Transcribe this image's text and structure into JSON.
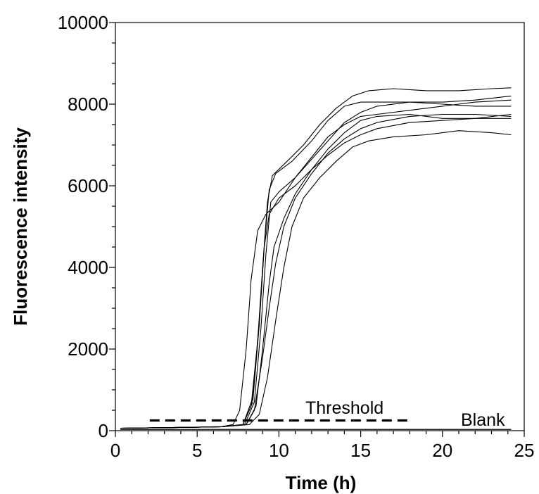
{
  "chart_data": {
    "type": "line",
    "title": "",
    "xlabel": "Time (h)",
    "ylabel": "Fluorescence intensity",
    "xlim": [
      0,
      25
    ],
    "ylim": [
      0,
      10000
    ],
    "x_ticks": [
      0,
      5,
      10,
      15,
      20,
      25
    ],
    "y_ticks": [
      0,
      2000,
      4000,
      6000,
      8000,
      10000
    ],
    "x_tick_labels": [
      "0",
      "5",
      "10",
      "15",
      "20",
      "25"
    ],
    "y_tick_labels": [
      "0",
      "2000",
      "4000",
      "6000",
      "8000",
      "10000"
    ],
    "grid": false,
    "legend": "none",
    "line_color": "#000000",
    "series": [
      {
        "values": [
          [
            0.3,
            60
          ],
          [
            4,
            80
          ],
          [
            6.5,
            100
          ],
          [
            7.2,
            150
          ],
          [
            7.6,
            500
          ],
          [
            8.0,
            2000
          ],
          [
            8.3,
            3700
          ],
          [
            8.7,
            4900
          ],
          [
            9.2,
            5300
          ],
          [
            10,
            5600
          ],
          [
            11,
            6200
          ],
          [
            12,
            6700
          ],
          [
            13,
            7200
          ],
          [
            14,
            7500
          ],
          [
            15,
            7700
          ],
          [
            16,
            7750
          ],
          [
            18,
            7850
          ],
          [
            20,
            7950
          ],
          [
            22,
            8050
          ],
          [
            24.2,
            8100
          ]
        ]
      },
      {
        "values": [
          [
            0.3,
            60
          ],
          [
            4,
            80
          ],
          [
            6.5,
            95
          ],
          [
            7.8,
            150
          ],
          [
            8.3,
            600
          ],
          [
            8.7,
            2200
          ],
          [
            9.0,
            4000
          ],
          [
            9.3,
            5600
          ],
          [
            9.6,
            6250
          ],
          [
            10.5,
            6600
          ],
          [
            11.5,
            7000
          ],
          [
            12.5,
            7500
          ],
          [
            13.5,
            7900
          ],
          [
            14.5,
            8200
          ],
          [
            15.5,
            8330
          ],
          [
            17,
            8380
          ],
          [
            19,
            8330
          ],
          [
            21,
            8330
          ],
          [
            23,
            8380
          ],
          [
            24.2,
            8400
          ]
        ]
      },
      {
        "values": [
          [
            0.3,
            60
          ],
          [
            4,
            80
          ],
          [
            6.5,
            95
          ],
          [
            7.8,
            150
          ],
          [
            8.4,
            700
          ],
          [
            8.8,
            2600
          ],
          [
            9.1,
            4500
          ],
          [
            9.4,
            5900
          ],
          [
            9.8,
            6300
          ],
          [
            10.8,
            6600
          ],
          [
            12,
            7100
          ],
          [
            13,
            7600
          ],
          [
            14,
            7950
          ],
          [
            15,
            8050
          ],
          [
            16,
            8050
          ],
          [
            18,
            8050
          ],
          [
            20,
            8050
          ],
          [
            22,
            8100
          ],
          [
            24.2,
            8200
          ]
        ]
      },
      {
        "values": [
          [
            0.3,
            60
          ],
          [
            4,
            80
          ],
          [
            6.5,
            95
          ],
          [
            7.9,
            150
          ],
          [
            8.5,
            700
          ],
          [
            8.9,
            2500
          ],
          [
            9.2,
            4300
          ],
          [
            9.5,
            5600
          ],
          [
            10,
            5850
          ],
          [
            11,
            6200
          ],
          [
            12,
            6650
          ],
          [
            13,
            7100
          ],
          [
            14,
            7550
          ],
          [
            15,
            7800
          ],
          [
            16,
            7950
          ],
          [
            18,
            8050
          ],
          [
            20,
            8000
          ],
          [
            22,
            7950
          ],
          [
            24.2,
            7950
          ]
        ]
      },
      {
        "values": [
          [
            0.3,
            60
          ],
          [
            4,
            80
          ],
          [
            6.5,
            95
          ],
          [
            7.8,
            150
          ],
          [
            8.4,
            800
          ],
          [
            8.8,
            2700
          ],
          [
            9.1,
            4500
          ],
          [
            9.4,
            5300
          ],
          [
            10,
            5700
          ],
          [
            11,
            6000
          ],
          [
            12,
            6400
          ],
          [
            13,
            6750
          ],
          [
            14,
            7050
          ],
          [
            15,
            7250
          ],
          [
            16,
            7400
          ],
          [
            18,
            7550
          ],
          [
            20,
            7600
          ],
          [
            22,
            7650
          ],
          [
            24.2,
            7750
          ]
        ]
      },
      {
        "values": [
          [
            0.3,
            60
          ],
          [
            4,
            80
          ],
          [
            6.5,
            95
          ],
          [
            8.0,
            150
          ],
          [
            8.6,
            600
          ],
          [
            9.0,
            2000
          ],
          [
            9.4,
            3600
          ],
          [
            9.7,
            4500
          ],
          [
            10.3,
            5200
          ],
          [
            11,
            5800
          ],
          [
            12,
            6400
          ],
          [
            13,
            6900
          ],
          [
            14,
            7300
          ],
          [
            15,
            7600
          ],
          [
            16,
            7700
          ],
          [
            18,
            7750
          ],
          [
            20,
            7650
          ],
          [
            22,
            7650
          ],
          [
            24.2,
            7650
          ]
        ]
      },
      {
        "values": [
          [
            0.3,
            60
          ],
          [
            4,
            80
          ],
          [
            6.5,
            95
          ],
          [
            8.2,
            150
          ],
          [
            8.8,
            400
          ],
          [
            9.3,
            1300
          ],
          [
            9.8,
            2700
          ],
          [
            10.3,
            4000
          ],
          [
            10.8,
            5000
          ],
          [
            11.5,
            5700
          ],
          [
            12.5,
            6200
          ],
          [
            13.5,
            6600
          ],
          [
            14.5,
            6950
          ],
          [
            15.5,
            7100
          ],
          [
            17,
            7200
          ],
          [
            19,
            7250
          ],
          [
            21,
            7350
          ],
          [
            23,
            7300
          ],
          [
            24.2,
            7250
          ]
        ]
      },
      {
        "values": [
          [
            0.3,
            60
          ],
          [
            4,
            80
          ],
          [
            6.5,
            95
          ],
          [
            8.0,
            150
          ],
          [
            8.5,
            500
          ],
          [
            9.0,
            1800
          ],
          [
            9.4,
            3000
          ],
          [
            9.8,
            4100
          ],
          [
            10.3,
            5000
          ],
          [
            11,
            5700
          ],
          [
            12,
            6300
          ],
          [
            13,
            6800
          ],
          [
            14,
            7150
          ],
          [
            15,
            7400
          ],
          [
            16,
            7550
          ],
          [
            18,
            7700
          ],
          [
            20,
            7750
          ],
          [
            22,
            7750
          ],
          [
            24.2,
            7700
          ]
        ]
      }
    ],
    "reference_lines": [
      {
        "label": "Threshold",
        "y": 250,
        "x_start": 2.1,
        "x_end": 18.0,
        "style": "dashed"
      },
      {
        "label": "Blank",
        "y": 30,
        "x_start": 0.3,
        "x_end": 24.2,
        "style": "solid"
      }
    ]
  }
}
